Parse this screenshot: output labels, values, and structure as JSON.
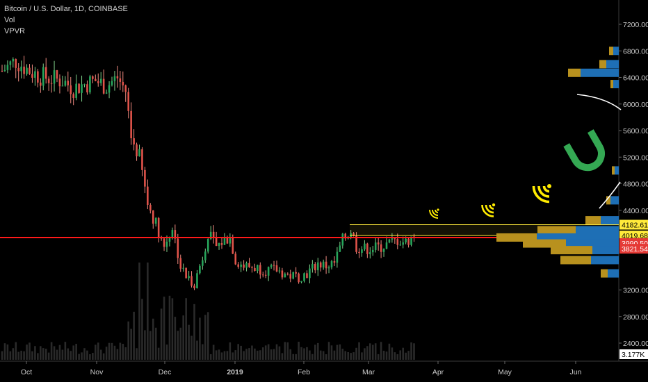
{
  "legend": {
    "title": "Bitcoin / U.S. Dollar, 1D, COINBASE",
    "indicators": [
      "Vol",
      "VPVR"
    ]
  },
  "chart_data": {
    "type": "candlestick",
    "price_axis": {
      "ticks": [
        7200,
        6800,
        6400,
        6000,
        5600,
        5200,
        4800,
        4400,
        3200,
        2800,
        2400
      ],
      "tick_labels": [
        "7200.00",
        "6800.00",
        "6400.00",
        "6000.00",
        "5600.00",
        "5200.00",
        "4800.00",
        "4400.00",
        "3200.00",
        "2800.00",
        "2400.00"
      ],
      "range": [
        2200,
        7500
      ]
    },
    "time_axis": {
      "labels": [
        "Oct",
        "Nov",
        "Dec",
        "2019",
        "Feb",
        "Mar",
        "Apr",
        "May",
        "Jun"
      ]
    },
    "price_badges": [
      {
        "value": "4182.61",
        "color": "#ffeb3b",
        "text_color": "#000000"
      },
      {
        "value": "4019.68",
        "color": "#ffeb3b",
        "text_color": "#000000"
      },
      {
        "value": "3990.50",
        "color": "#e53935",
        "text_color": "#ffffff"
      },
      {
        "value": "3821.54",
        "color": "#e53935",
        "text_color": "#ffffff"
      },
      {
        "value": "3.177K",
        "color": "#ffffff",
        "text_color": "#000000"
      }
    ],
    "horizontal_lines": [
      {
        "price": 3990,
        "color": "#ff1a1a"
      },
      {
        "price": 4183,
        "color": "#ffeb3b"
      },
      {
        "price": 4020,
        "color": "#ffeb3b"
      }
    ],
    "price_path": [
      [
        0,
        6500
      ],
      [
        5,
        6650
      ],
      [
        10,
        6500
      ],
      [
        14,
        6420
      ],
      [
        18,
        6380
      ],
      [
        22,
        6350
      ],
      [
        26,
        6240
      ],
      [
        30,
        6300
      ],
      [
        34,
        6350
      ],
      [
        38,
        6270
      ],
      [
        42,
        6400
      ],
      [
        45,
        6200
      ],
      [
        47,
        5500
      ],
      [
        50,
        5200
      ],
      [
        53,
        4500
      ],
      [
        56,
        4200
      ],
      [
        59,
        3850
      ],
      [
        62,
        4150
      ],
      [
        65,
        3550
      ],
      [
        67,
        3400
      ],
      [
        70,
        3300
      ],
      [
        73,
        3700
      ],
      [
        75,
        4050
      ],
      [
        78,
        3850
      ],
      [
        81,
        3950
      ],
      [
        83,
        4000
      ],
      [
        85,
        3650
      ],
      [
        88,
        3560
      ],
      [
        92,
        3540
      ],
      [
        96,
        3500
      ],
      [
        100,
        3500
      ],
      [
        104,
        3420
      ],
      [
        108,
        3400
      ],
      [
        111,
        3450
      ],
      [
        115,
        3600
      ],
      [
        118,
        3560
      ],
      [
        121,
        3600
      ],
      [
        124,
        3950
      ],
      [
        127,
        4100
      ],
      [
        129,
        3850
      ],
      [
        132,
        3820
      ],
      [
        135,
        3830
      ],
      [
        138,
        3850
      ],
      [
        141,
        3900
      ],
      [
        144,
        3950
      ],
      [
        147,
        3920
      ],
      [
        150,
        4020
      ]
    ],
    "volume_profile_rows": [
      {
        "price": 6800,
        "up": 6,
        "down": 8
      },
      {
        "price": 6600,
        "up": 10,
        "down": 18
      },
      {
        "price": 6470,
        "up": 18,
        "down": 55
      },
      {
        "price": 6300,
        "up": 4,
        "down": 8
      },
      {
        "price": 5000,
        "up": 4,
        "down": 6
      },
      {
        "price": 4550,
        "up": 6,
        "down": 12
      },
      {
        "price": 4250,
        "up": 22,
        "down": 26
      },
      {
        "price": 4100,
        "up": 55,
        "down": 62
      },
      {
        "price": 3990,
        "up": 58,
        "down": 118
      },
      {
        "price": 3900,
        "up": 62,
        "down": 76
      },
      {
        "price": 3800,
        "up": 60,
        "down": 38
      },
      {
        "price": 3650,
        "up": 44,
        "down": 40
      },
      {
        "price": 3450,
        "up": 10,
        "down": 16
      }
    ]
  }
}
